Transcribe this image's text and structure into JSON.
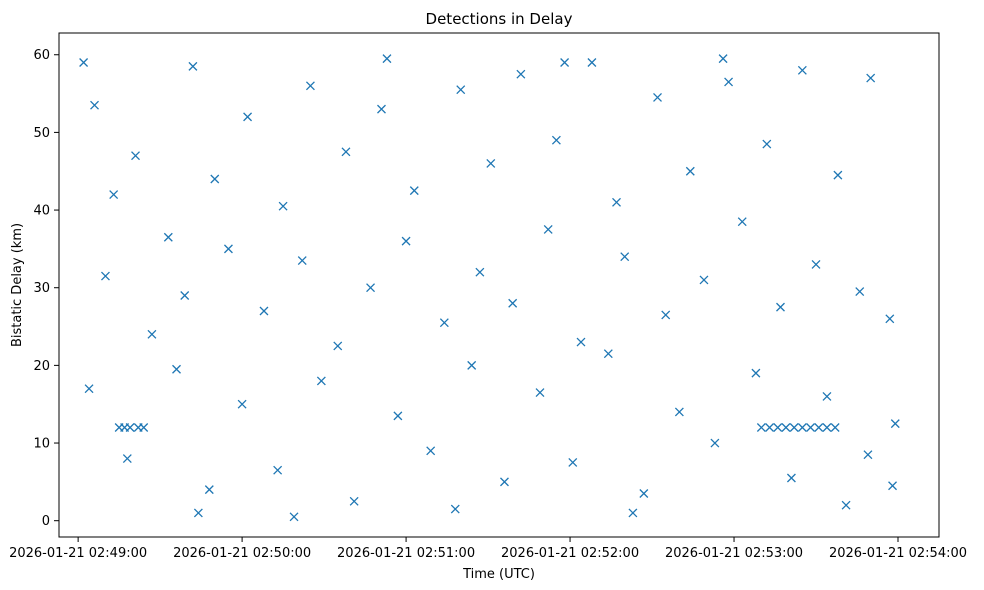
{
  "chart_data": {
    "type": "scatter",
    "title": "Detections in Delay",
    "xlabel": "Time (UTC)",
    "ylabel": "Bistatic Delay (km)",
    "marker": "x",
    "color": "#1f77b4",
    "grid": false,
    "legend": "none",
    "x_axis": {
      "kind": "datetime",
      "range": [
        "2026-01-21 02:48:53",
        "2026-01-21 02:54:15"
      ],
      "ticks": [
        "2026-01-21 02:49:00",
        "2026-01-21 02:50:00",
        "2026-01-21 02:51:00",
        "2026-01-21 02:52:00",
        "2026-01-21 02:53:00",
        "2026-01-21 02:54:00"
      ]
    },
    "y_axis": {
      "range": [
        -2.1,
        62.8
      ],
      "ticks": [
        0,
        10,
        20,
        30,
        40,
        50,
        60
      ]
    },
    "series": [
      {
        "points": [
          {
            "x": "2026-01-21 02:49:06",
            "y": 53.5
          },
          {
            "x": "2026-01-21 02:49:13",
            "y": 42.0
          },
          {
            "x": "2026-01-21 02:49:21",
            "y": 47.0
          },
          {
            "x": "2026-01-21 02:49:33",
            "y": 36.5
          },
          {
            "x": "2026-01-21 02:49:42",
            "y": 58.5
          },
          {
            "x": "2026-01-21 02:49:50",
            "y": 44.0
          },
          {
            "x": "2026-01-21 02:50:02",
            "y": 52.0
          },
          {
            "x": "2026-01-21 02:50:15",
            "y": 40.5
          },
          {
            "x": "2026-01-21 02:50:25",
            "y": 56.0
          },
          {
            "x": "2026-01-21 02:50:38",
            "y": 47.5
          },
          {
            "x": "2026-01-21 02:50:51",
            "y": 53.0
          },
          {
            "x": "2026-01-21 02:51:03",
            "y": 42.5
          },
          {
            "x": "2026-01-21 02:51:20",
            "y": 55.5
          },
          {
            "x": "2026-01-21 02:51:31",
            "y": 46.0
          },
          {
            "x": "2026-01-21 02:51:42",
            "y": 57.5
          },
          {
            "x": "2026-01-21 02:51:55",
            "y": 49.0
          },
          {
            "x": "2026-01-21 02:52:08",
            "y": 59.0
          },
          {
            "x": "2026-01-21 02:52:17",
            "y": 41.0
          },
          {
            "x": "2026-01-21 02:52:32",
            "y": 54.5
          },
          {
            "x": "2026-01-21 02:52:44",
            "y": 45.0
          },
          {
            "x": "2026-01-21 02:52:58",
            "y": 56.5
          },
          {
            "x": "2026-01-21 02:53:12",
            "y": 48.5
          },
          {
            "x": "2026-01-21 02:53:25",
            "y": 58.0
          },
          {
            "x": "2026-01-21 02:53:38",
            "y": 44.5
          },
          {
            "x": "2026-01-21 02:53:50",
            "y": 57.0
          },
          {
            "x": "2026-01-21 02:49:10",
            "y": 31.5
          },
          {
            "x": "2026-01-21 02:49:27",
            "y": 24.0
          },
          {
            "x": "2026-01-21 02:49:39",
            "y": 29.0
          },
          {
            "x": "2026-01-21 02:49:55",
            "y": 35.0
          },
          {
            "x": "2026-01-21 02:50:08",
            "y": 27.0
          },
          {
            "x": "2026-01-21 02:50:22",
            "y": 33.5
          },
          {
            "x": "2026-01-21 02:50:35",
            "y": 22.5
          },
          {
            "x": "2026-01-21 02:50:47",
            "y": 30.0
          },
          {
            "x": "2026-01-21 02:51:00",
            "y": 36.0
          },
          {
            "x": "2026-01-21 02:51:14",
            "y": 25.5
          },
          {
            "x": "2026-01-21 02:51:27",
            "y": 32.0
          },
          {
            "x": "2026-01-21 02:51:39",
            "y": 28.0
          },
          {
            "x": "2026-01-21 02:51:52",
            "y": 37.5
          },
          {
            "x": "2026-01-21 02:52:04",
            "y": 23.0
          },
          {
            "x": "2026-01-21 02:52:20",
            "y": 34.0
          },
          {
            "x": "2026-01-21 02:52:35",
            "y": 26.5
          },
          {
            "x": "2026-01-21 02:52:49",
            "y": 31.0
          },
          {
            "x": "2026-01-21 02:53:03",
            "y": 38.5
          },
          {
            "x": "2026-01-21 02:53:17",
            "y": 27.5
          },
          {
            "x": "2026-01-21 02:53:30",
            "y": 33.0
          },
          {
            "x": "2026-01-21 02:53:46",
            "y": 29.5
          },
          {
            "x": "2026-01-21 02:53:57",
            "y": 26.0
          },
          {
            "x": "2026-01-21 02:49:04",
            "y": 17.0
          },
          {
            "x": "2026-01-21 02:49:18",
            "y": 8.0
          },
          {
            "x": "2026-01-21 02:49:36",
            "y": 19.5
          },
          {
            "x": "2026-01-21 02:49:48",
            "y": 4.0
          },
          {
            "x": "2026-01-21 02:50:00",
            "y": 15.0
          },
          {
            "x": "2026-01-21 02:50:13",
            "y": 6.5
          },
          {
            "x": "2026-01-21 02:50:29",
            "y": 18.0
          },
          {
            "x": "2026-01-21 02:50:41",
            "y": 2.5
          },
          {
            "x": "2026-01-21 02:50:57",
            "y": 13.5
          },
          {
            "x": "2026-01-21 02:51:09",
            "y": 9.0
          },
          {
            "x": "2026-01-21 02:51:24",
            "y": 20.0
          },
          {
            "x": "2026-01-21 02:51:36",
            "y": 5.0
          },
          {
            "x": "2026-01-21 02:51:49",
            "y": 16.5
          },
          {
            "x": "2026-01-21 02:52:01",
            "y": 7.5
          },
          {
            "x": "2026-01-21 02:52:14",
            "y": 21.5
          },
          {
            "x": "2026-01-21 02:52:27",
            "y": 3.5
          },
          {
            "x": "2026-01-21 02:52:40",
            "y": 14.0
          },
          {
            "x": "2026-01-21 02:52:53",
            "y": 10.0
          },
          {
            "x": "2026-01-21 02:53:08",
            "y": 19.0
          },
          {
            "x": "2026-01-21 02:53:21",
            "y": 5.5
          },
          {
            "x": "2026-01-21 02:53:34",
            "y": 16.0
          },
          {
            "x": "2026-01-21 02:53:49",
            "y": 8.5
          },
          {
            "x": "2026-01-21 02:53:59",
            "y": 12.5
          },
          {
            "x": "2026-01-21 02:49:15",
            "y": 12.0
          },
          {
            "x": "2026-01-21 02:49:17",
            "y": 12.0
          },
          {
            "x": "2026-01-21 02:49:19",
            "y": 12.0
          },
          {
            "x": "2026-01-21 02:49:22",
            "y": 12.0
          },
          {
            "x": "2026-01-21 02:49:24",
            "y": 12.0
          },
          {
            "x": "2026-01-21 02:53:10",
            "y": 12.0
          },
          {
            "x": "2026-01-21 02:53:13",
            "y": 12.0
          },
          {
            "x": "2026-01-21 02:53:16",
            "y": 12.0
          },
          {
            "x": "2026-01-21 02:53:19",
            "y": 12.0
          },
          {
            "x": "2026-01-21 02:53:22",
            "y": 12.0
          },
          {
            "x": "2026-01-21 02:53:25",
            "y": 12.0
          },
          {
            "x": "2026-01-21 02:53:28",
            "y": 12.0
          },
          {
            "x": "2026-01-21 02:53:31",
            "y": 12.0
          },
          {
            "x": "2026-01-21 02:53:34",
            "y": 12.0
          },
          {
            "x": "2026-01-21 02:53:37",
            "y": 12.0
          },
          {
            "x": "2026-01-21 02:49:02",
            "y": 59.0
          },
          {
            "x": "2026-01-21 02:49:44",
            "y": 1.0
          },
          {
            "x": "2026-01-21 02:50:19",
            "y": 0.5
          },
          {
            "x": "2026-01-21 02:50:53",
            "y": 59.5
          },
          {
            "x": "2026-01-21 02:51:18",
            "y": 1.5
          },
          {
            "x": "2026-01-21 02:51:58",
            "y": 59.0
          },
          {
            "x": "2026-01-21 02:52:23",
            "y": 1.0
          },
          {
            "x": "2026-01-21 02:52:56",
            "y": 59.5
          },
          {
            "x": "2026-01-21 02:53:41",
            "y": 2.0
          },
          {
            "x": "2026-01-21 02:53:58",
            "y": 4.5
          }
        ]
      }
    ]
  }
}
